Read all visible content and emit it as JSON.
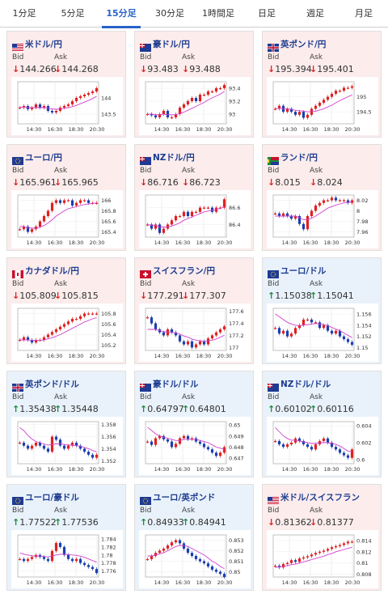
{
  "tabs": [
    {
      "label": "1分足",
      "active": false
    },
    {
      "label": "5分足",
      "active": false
    },
    {
      "label": "15分足",
      "active": true
    },
    {
      "label": "30分足",
      "active": false
    },
    {
      "label": "1時間足",
      "active": false
    },
    {
      "label": "日足",
      "active": false
    },
    {
      "label": "週足",
      "active": false
    },
    {
      "label": "月足",
      "active": false
    }
  ],
  "labels": {
    "bid": "Bid",
    "ask": "Ask"
  },
  "colors": {
    "candle_up": "#e02020",
    "candle_down": "#1a3fb0",
    "ma": "#d040d0",
    "arrow_down": "#e02020",
    "arrow_up": "#1a8c3a"
  },
  "pairs": [
    {
      "title": "米ドル/円",
      "dir": "down",
      "flag": "flag-us",
      "bid": "144.266",
      "ask": "144.268",
      "chart_data": {
        "type": "candlestick",
        "x_ticks": [
          "14:30",
          "16:30",
          "18:30",
          "20:30"
        ],
        "y_ticks": [
          "144",
          "143.5"
        ],
        "ylim": [
          143.2,
          144.5
        ],
        "trend": [
          143.7,
          143.75,
          143.65,
          143.7,
          143.8,
          143.7,
          143.75,
          143.6,
          143.55,
          143.6,
          143.7,
          143.75,
          143.8,
          143.9,
          144.0,
          144.05,
          144.1,
          144.15,
          144.2,
          144.3
        ],
        "ma": [
          143.7,
          143.72,
          143.7,
          143.7,
          143.7,
          143.7,
          143.7,
          143.68,
          143.66,
          143.65,
          143.66,
          143.68,
          143.7,
          143.73,
          143.77,
          143.82,
          143.87,
          143.92,
          143.98,
          144.05
        ]
      }
    },
    {
      "title": "豪ドル/円",
      "dir": "down",
      "flag": "flag-au",
      "bid": "93.483",
      "ask": "93.488",
      "chart_data": {
        "type": "candlestick",
        "x_ticks": [
          "14:30",
          "16:30",
          "18:30",
          "20:30"
        ],
        "y_ticks": [
          "93.4",
          "93.2",
          "93"
        ],
        "ylim": [
          92.85,
          93.5
        ],
        "trend": [
          93.0,
          92.98,
          92.95,
          93.0,
          93.05,
          92.95,
          92.95,
          93.0,
          93.1,
          93.15,
          93.2,
          93.25,
          93.2,
          93.3,
          93.3,
          93.35,
          93.35,
          93.4,
          93.4,
          93.45
        ],
        "ma": [
          93.0,
          93.0,
          92.99,
          92.99,
          93.0,
          92.99,
          92.99,
          92.99,
          93.01,
          93.03,
          93.06,
          93.09,
          93.12,
          93.15,
          93.18,
          93.22,
          93.25,
          93.28,
          93.31,
          93.35
        ]
      }
    },
    {
      "title": "英ポンド/円",
      "dir": "down",
      "flag": "flag-gb",
      "bid": "195.394",
      "ask": "195.401",
      "chart_data": {
        "type": "candlestick",
        "x_ticks": [
          "14:30",
          "16:30",
          "18:30",
          "20:30"
        ],
        "y_ticks": [
          "195",
          "194.5"
        ],
        "ylim": [
          194.1,
          195.5
        ],
        "trend": [
          194.6,
          194.7,
          194.5,
          194.6,
          194.5,
          194.4,
          194.5,
          194.3,
          194.4,
          194.6,
          194.7,
          194.8,
          194.9,
          195.0,
          195.1,
          195.2,
          195.2,
          195.3,
          195.3,
          195.35
        ],
        "ma": [
          194.6,
          194.62,
          194.6,
          194.6,
          194.58,
          194.55,
          194.54,
          194.52,
          194.5,
          194.5,
          194.52,
          194.56,
          194.6,
          194.66,
          194.72,
          194.8,
          194.87,
          194.94,
          195.0,
          195.06
        ]
      }
    },
    {
      "title": "ユーロ/円",
      "dir": "down",
      "flag": "flag-eu",
      "bid": "165.961",
      "ask": "165.965",
      "chart_data": {
        "type": "candlestick",
        "x_ticks": [
          "14:30",
          "16:30",
          "18:30",
          "20:30"
        ],
        "y_ticks": [
          "166",
          "165.8",
          "165.6",
          "165.4"
        ],
        "ylim": [
          165.3,
          166.1
        ],
        "trend": [
          165.45,
          165.5,
          165.4,
          165.45,
          165.5,
          165.6,
          165.7,
          165.8,
          165.95,
          166.0,
          165.95,
          166.0,
          166.0,
          165.9,
          165.95,
          166.0,
          166.0,
          165.95,
          165.95,
          165.95
        ],
        "ma": [
          165.5,
          165.5,
          165.48,
          165.47,
          165.47,
          165.49,
          165.52,
          165.57,
          165.63,
          165.7,
          165.75,
          165.8,
          165.84,
          165.86,
          165.88,
          165.9,
          165.92,
          165.93,
          165.94,
          165.95
        ]
      }
    },
    {
      "title": "NZドル/円",
      "dir": "down",
      "flag": "flag-nz",
      "bid": "86.716",
      "ask": "86.723",
      "chart_data": {
        "type": "candlestick",
        "x_ticks": [
          "14:30",
          "16:30",
          "18:30",
          "20:30"
        ],
        "y_ticks": [
          "86.6",
          "86.4"
        ],
        "ylim": [
          86.25,
          86.75
        ],
        "trend": [
          86.4,
          86.35,
          86.4,
          86.3,
          86.35,
          86.4,
          86.45,
          86.5,
          86.5,
          86.55,
          86.5,
          86.55,
          86.55,
          86.6,
          86.6,
          86.6,
          86.55,
          86.6,
          86.6,
          86.7
        ],
        "ma": [
          86.4,
          86.39,
          86.39,
          86.37,
          86.37,
          86.37,
          86.38,
          86.4,
          86.42,
          86.45,
          86.47,
          86.49,
          86.51,
          86.53,
          86.55,
          86.56,
          86.57,
          86.58,
          86.59,
          86.61
        ]
      }
    },
    {
      "title": "ランド/円",
      "dir": "down",
      "flag": "flag-za",
      "bid": "8.015",
      "ask": "8.024",
      "chart_data": {
        "type": "candlestick",
        "x_ticks": [
          "14:30",
          "16:30",
          "18:30",
          "20:30"
        ],
        "y_ticks": [
          "8.02",
          "8",
          "7.98",
          "7.96"
        ],
        "ylim": [
          7.95,
          8.03
        ],
        "trend": [
          7.995,
          7.99,
          7.995,
          7.99,
          7.985,
          7.99,
          7.975,
          7.965,
          7.99,
          8.0,
          8.01,
          8.015,
          8.02,
          8.02,
          8.025,
          8.02,
          8.02,
          8.02,
          8.015,
          8.02
        ],
        "ma": [
          7.99,
          7.99,
          7.99,
          7.99,
          7.99,
          7.99,
          7.987,
          7.983,
          7.983,
          7.986,
          7.99,
          7.995,
          8.0,
          8.005,
          8.008,
          8.011,
          8.013,
          8.015,
          8.016,
          8.017
        ]
      }
    },
    {
      "title": "カナダドル/円",
      "dir": "down",
      "flag": "flag-ca",
      "bid": "105.809",
      "ask": "105.815",
      "chart_data": {
        "type": "candlestick",
        "x_ticks": [
          "14:30",
          "16:30",
          "18:30",
          "20:30"
        ],
        "y_ticks": [
          "105.8",
          "105.6",
          "105.4",
          "105.2"
        ],
        "ylim": [
          105.1,
          105.9
        ],
        "trend": [
          105.3,
          105.35,
          105.3,
          105.25,
          105.3,
          105.3,
          105.35,
          105.4,
          105.45,
          105.5,
          105.55,
          105.6,
          105.65,
          105.7,
          105.7,
          105.75,
          105.8,
          105.8,
          105.8,
          105.8
        ],
        "ma": [
          105.3,
          105.3,
          105.3,
          105.29,
          105.29,
          105.29,
          105.3,
          105.32,
          105.34,
          105.37,
          105.4,
          105.44,
          105.48,
          105.52,
          105.56,
          105.6,
          105.64,
          105.67,
          105.7,
          105.72
        ]
      }
    },
    {
      "title": "スイスフラン/円",
      "dir": "down",
      "flag": "flag-ch",
      "bid": "177.291",
      "ask": "177.307",
      "chart_data": {
        "type": "candlestick",
        "x_ticks": [
          "14:30",
          "16:30",
          "18:30",
          "20:30"
        ],
        "y_ticks": [
          "177.6",
          "177.4",
          "177.2",
          "177"
        ],
        "ylim": [
          176.95,
          177.65
        ],
        "trend": [
          177.5,
          177.4,
          177.3,
          177.25,
          177.2,
          177.3,
          177.25,
          177.2,
          177.1,
          177.05,
          177.1,
          177.0,
          177.05,
          177.1,
          177.05,
          177.15,
          177.2,
          177.25,
          177.3,
          177.35
        ],
        "ma": [
          177.3,
          177.3,
          177.3,
          177.28,
          177.26,
          177.26,
          177.25,
          177.24,
          177.22,
          177.19,
          177.17,
          177.14,
          177.12,
          177.11,
          177.1,
          177.11,
          177.12,
          177.14,
          177.17,
          177.2
        ]
      }
    },
    {
      "title": "ユーロ/ドル",
      "dir": "up",
      "flag": "flag-eu",
      "bid": "1.15038",
      "ask": "1.15041",
      "chart_data": {
        "type": "candlestick",
        "x_ticks": [
          "14:30",
          "16:30",
          "18:30",
          "20:30"
        ],
        "y_ticks": [
          "1.156",
          "1.154",
          "1.152",
          "1.15"
        ],
        "ylim": [
          1.1495,
          1.157
        ],
        "trend": [
          1.1535,
          1.1525,
          1.153,
          1.152,
          1.1525,
          1.1535,
          1.154,
          1.155,
          1.155,
          1.1545,
          1.1545,
          1.1535,
          1.154,
          1.153,
          1.1525,
          1.153,
          1.152,
          1.1515,
          1.151,
          1.1505
        ],
        "ma": [
          1.156,
          1.1555,
          1.155,
          1.1545,
          1.1542,
          1.154,
          1.1539,
          1.154,
          1.1541,
          1.1542,
          1.1543,
          1.1542,
          1.1541,
          1.1539,
          1.1536,
          1.1533,
          1.153,
          1.1526,
          1.1522,
          1.1518
        ]
      }
    },
    {
      "title": "英ポンド/ドル",
      "dir": "up",
      "flag": "flag-gb",
      "bid": "1.35438",
      "ask": "1.35448",
      "chart_data": {
        "type": "candlestick",
        "x_ticks": [
          "14:30",
          "16:30",
          "18:30",
          "20:30"
        ],
        "y_ticks": [
          "1.358",
          "1.356",
          "1.354",
          "1.352"
        ],
        "ylim": [
          1.3515,
          1.3585
        ],
        "trend": [
          1.355,
          1.3545,
          1.354,
          1.3545,
          1.355,
          1.3545,
          1.354,
          1.3535,
          1.356,
          1.3555,
          1.3545,
          1.354,
          1.3545,
          1.355,
          1.3545,
          1.354,
          1.3535,
          1.353,
          1.3525,
          1.353
        ],
        "ma": [
          1.3575,
          1.357,
          1.3562,
          1.3556,
          1.3552,
          1.355,
          1.3548,
          1.3546,
          1.3547,
          1.3548,
          1.3548,
          1.3547,
          1.3546,
          1.3546,
          1.3545,
          1.3544,
          1.3542,
          1.354,
          1.3537,
          1.3535
        ]
      }
    },
    {
      "title": "豪ドル/ドル",
      "dir": "up",
      "flag": "flag-au",
      "bid": "0.64797",
      "ask": "0.64801",
      "chart_data": {
        "type": "candlestick",
        "x_ticks": [
          "14:30",
          "16:30",
          "18:30",
          "20:30"
        ],
        "y_ticks": [
          "0.65",
          "0.649",
          "0.648",
          "0.647"
        ],
        "ylim": [
          0.6465,
          0.6503
        ],
        "trend": [
          0.6485,
          0.6482,
          0.6488,
          0.649,
          0.6487,
          0.6485,
          0.648,
          0.6483,
          0.6488,
          0.649,
          0.6487,
          0.6488,
          0.6485,
          0.6483,
          0.648,
          0.6478,
          0.6475,
          0.6472,
          0.6475,
          0.648
        ],
        "ma": [
          0.6498,
          0.6495,
          0.6492,
          0.649,
          0.6489,
          0.6488,
          0.6487,
          0.6486,
          0.6486,
          0.6487,
          0.6487,
          0.6487,
          0.6487,
          0.6486,
          0.6485,
          0.6484,
          0.6482,
          0.648,
          0.6479,
          0.6478
        ]
      }
    },
    {
      "title": "NZドル/ドル",
      "dir": "up",
      "flag": "flag-nz",
      "bid": "0.60102",
      "ask": "0.60116",
      "chart_data": {
        "type": "candlestick",
        "x_ticks": [
          "14:30",
          "16:30",
          "18:30",
          "20:30"
        ],
        "y_ticks": [
          "0.604",
          "0.602",
          "0.6"
        ],
        "ylim": [
          0.5995,
          0.6045
        ],
        "trend": [
          0.6022,
          0.6018,
          0.6015,
          0.6018,
          0.602,
          0.6025,
          0.6022,
          0.6018,
          0.6015,
          0.6012,
          0.6018,
          0.6022,
          0.6025,
          0.602,
          0.6015,
          0.6012,
          0.6008,
          0.6005,
          0.6002,
          0.6012
        ],
        "ma": [
          0.6038,
          0.6033,
          0.6028,
          0.6025,
          0.6023,
          0.6023,
          0.6022,
          0.6021,
          0.602,
          0.6019,
          0.6019,
          0.602,
          0.602,
          0.602,
          0.6019,
          0.6018,
          0.6016,
          0.6013,
          0.601,
          0.6009
        ]
      }
    },
    {
      "title": "ユーロ/豪ドル",
      "dir": "up",
      "flag": "flag-eu",
      "bid": "1.77522",
      "ask": "1.77536",
      "chart_data": {
        "type": "candlestick",
        "x_ticks": [
          "14:30",
          "16:30",
          "18:30",
          "20:30"
        ],
        "y_ticks": [
          "1.784",
          "1.782",
          "1.78",
          "1.778",
          "1.776"
        ],
        "ylim": [
          1.7745,
          1.785
        ],
        "trend": [
          1.779,
          1.7785,
          1.779,
          1.7795,
          1.78,
          1.7795,
          1.779,
          1.7785,
          1.781,
          1.783,
          1.782,
          1.78,
          1.779,
          1.7785,
          1.779,
          1.778,
          1.7775,
          1.777,
          1.7765,
          1.7755
        ],
        "ma": [
          1.7805,
          1.7802,
          1.78,
          1.7798,
          1.7797,
          1.7797,
          1.7796,
          1.7795,
          1.7797,
          1.78,
          1.7802,
          1.7802,
          1.7801,
          1.78,
          1.7799,
          1.7797,
          1.7794,
          1.779,
          1.7786,
          1.7782
        ]
      }
    },
    {
      "title": "ユーロ/英ポンド",
      "dir": "up",
      "flag": "flag-eu",
      "bid": "0.84933",
      "ask": "0.84941",
      "chart_data": {
        "type": "candlestick",
        "x_ticks": [
          "14:30",
          "16:30",
          "18:30",
          "20:30"
        ],
        "y_ticks": [
          "0.853",
          "0.852",
          "0.851",
          "0.85"
        ],
        "ylim": [
          0.8495,
          0.8535
        ],
        "trend": [
          0.8512,
          0.8515,
          0.8518,
          0.852,
          0.8522,
          0.8525,
          0.8528,
          0.853,
          0.8527,
          0.8522,
          0.8518,
          0.8515,
          0.8512,
          0.851,
          0.8508,
          0.8505,
          0.8502,
          0.85,
          0.8498,
          0.8495
        ],
        "ma": [
          0.8515,
          0.8515,
          0.8516,
          0.8517,
          0.8518,
          0.852,
          0.8522,
          0.8524,
          0.8525,
          0.8525,
          0.8524,
          0.8522,
          0.852,
          0.8518,
          0.8516,
          0.8513,
          0.851,
          0.8508,
          0.8505,
          0.8503
        ]
      }
    },
    {
      "title": "米ドル/スイスフラン",
      "dir": "down",
      "flag": "flag-us",
      "bid": "0.81362",
      "ask": "0.81377",
      "chart_data": {
        "type": "candlestick",
        "x_ticks": [
          "14:30",
          "16:30",
          "18:30",
          "20:30"
        ],
        "y_ticks": [
          "0.814",
          "0.812",
          "0.81",
          "0.808"
        ],
        "ylim": [
          0.8075,
          0.815
        ],
        "trend": [
          0.8095,
          0.8092,
          0.8098,
          0.81,
          0.8105,
          0.8102,
          0.8108,
          0.811,
          0.8112,
          0.8115,
          0.8118,
          0.812,
          0.8122,
          0.8125,
          0.8128,
          0.813,
          0.8132,
          0.8135,
          0.8138,
          0.8138
        ],
        "ma": [
          0.8092,
          0.8093,
          0.8094,
          0.8095,
          0.8097,
          0.8098,
          0.81,
          0.8102,
          0.8104,
          0.8106,
          0.8108,
          0.811,
          0.8112,
          0.8115,
          0.8117,
          0.812,
          0.8122,
          0.8124,
          0.8126,
          0.8128
        ]
      }
    }
  ]
}
